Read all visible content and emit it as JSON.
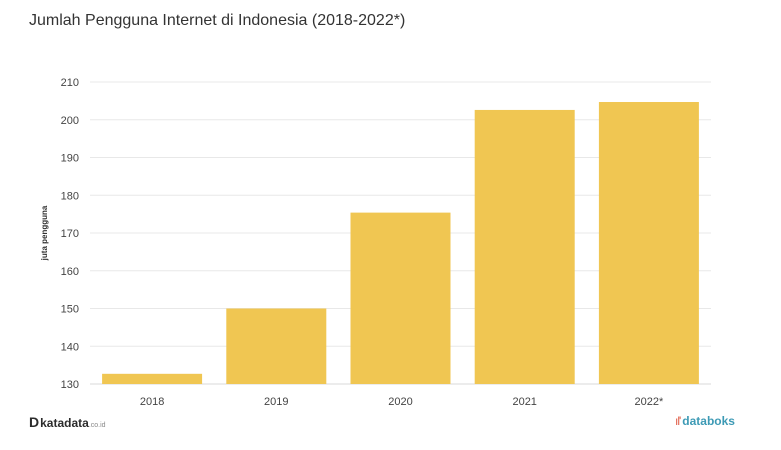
{
  "header": {
    "title": "Jumlah Pengguna Internet di Indonesia (2018-2022*)"
  },
  "chart_data": {
    "type": "bar",
    "title": "Jumlah Pengguna Internet di Indonesia (2018-2022*)",
    "categories": [
      "2018",
      "2019",
      "2020",
      "2021",
      "2022*"
    ],
    "values": [
      132.7,
      150.0,
      175.4,
      202.6,
      204.7
    ],
    "ylabel": "juta pengguna",
    "xlabel": "",
    "ylim": [
      130,
      210
    ],
    "yticks": [
      130,
      140,
      150,
      160,
      170,
      180,
      190,
      200,
      210
    ],
    "grid": true,
    "legend": "none",
    "bar_color": "#f0c652",
    "grid_color": "#e8e8e8",
    "axis_line_color": "#d8d8d8",
    "tick_label_color": "#444444"
  },
  "footer": {
    "source_mark": "D",
    "source_name": "katadata",
    "source_domain": ".co.id",
    "brand_mark": "ıl'",
    "brand_name": "databoks"
  }
}
